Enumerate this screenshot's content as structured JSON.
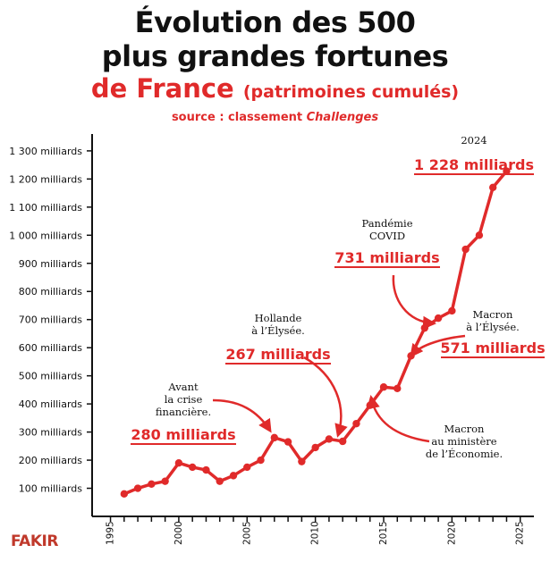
{
  "header": {
    "title_line1": "Évolution des 500",
    "title_line2": "plus grandes fortunes",
    "title_line3": "de France",
    "title_line3_sub": "(patrimoines cumulés)",
    "source_prefix": "source : classement ",
    "source_name": "Challenges"
  },
  "logo": {
    "text": "FAKIR"
  },
  "colors": {
    "accent": "#e02a2a",
    "axis": "#111111"
  },
  "annotations": {
    "crisis_label": [
      "Avant",
      "la crise",
      "financière."
    ],
    "crisis_value": "280 milliards",
    "hollande_label": [
      "Hollande",
      "à l’Élysée."
    ],
    "hollande_value": "267 milliards",
    "covid_label": [
      "Pandémie",
      "COVID"
    ],
    "covid_value": "731 milliards",
    "year2024_label": "2024",
    "year2024_value": "1 228 milliards",
    "macron_elysee_label": [
      "Macron",
      "à l’Élysée."
    ],
    "macron_elysee_value": "571 milliards",
    "macron_eco_label": [
      "Macron",
      "au ministère",
      "de l’Économie."
    ]
  },
  "chart_data": {
    "type": "line",
    "title": "Évolution des 500 plus grandes fortunes de France (patrimoines cumulés)",
    "xlabel": "",
    "ylabel": "",
    "xlim": [
      1993,
      2026
    ],
    "ylim": [
      0,
      1360
    ],
    "x_ticks": [
      1995,
      2000,
      2005,
      2010,
      2015,
      2020,
      2025
    ],
    "y_ticks": [
      100,
      200,
      300,
      400,
      500,
      600,
      700,
      800,
      900,
      1000,
      1100,
      1200,
      1300
    ],
    "y_tick_labels": [
      "100 milliards",
      "200 milliards",
      "300 milliards",
      "400 milliards",
      "500 milliards",
      "600 milliards",
      "700 milliards",
      "800 milliards",
      "900 milliards",
      "1 000 milliards",
      "1 100 milliards",
      "1 200 milliards",
      "1 300 milliards"
    ],
    "series": [
      {
        "name": "Patrimoine cumulé (milliards)",
        "x": [
          1996,
          1997,
          1998,
          1999,
          2000,
          2001,
          2002,
          2003,
          2004,
          2005,
          2006,
          2007,
          2008,
          2009,
          2010,
          2011,
          2012,
          2013,
          2014,
          2015,
          2016,
          2017,
          2018,
          2019,
          2020,
          2021,
          2022,
          2023,
          2024
        ],
        "values": [
          80,
          100,
          115,
          125,
          190,
          175,
          165,
          125,
          145,
          175,
          200,
          280,
          265,
          195,
          245,
          275,
          267,
          330,
          395,
          460,
          455,
          571,
          670,
          705,
          731,
          950,
          1000,
          1170,
          1228
        ]
      }
    ]
  }
}
